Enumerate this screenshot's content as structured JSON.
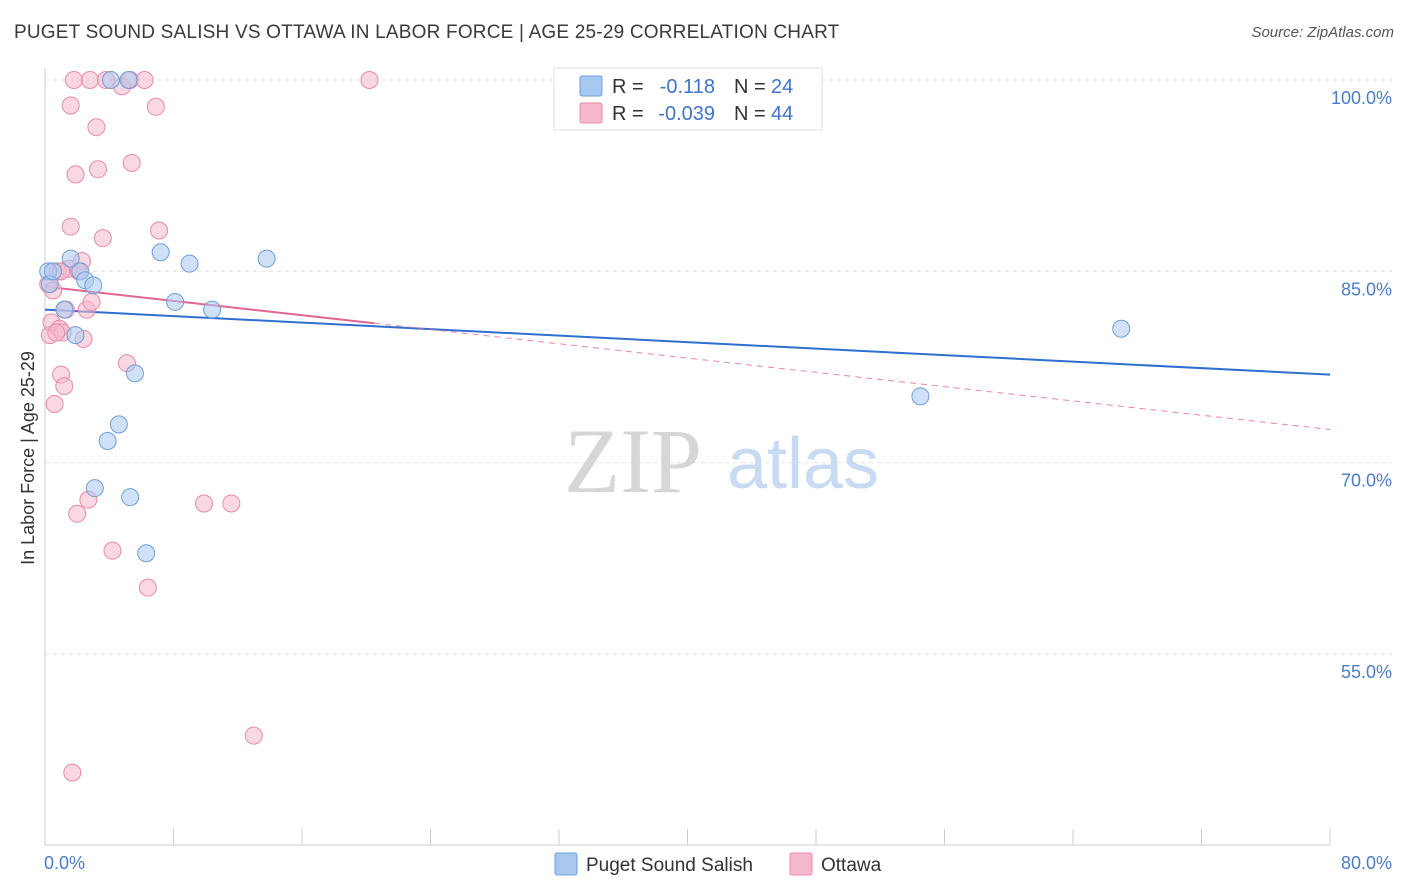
{
  "chart_data": {
    "type": "scatter",
    "title": "PUGET SOUND SALISH VS OTTAWA IN LABOR FORCE | AGE 25-29 CORRELATION CHART",
    "source": "Source: ZipAtlas.com",
    "xlabel": "",
    "ylabel": "In Labor Force | Age 25-29",
    "xlim": [
      0,
      80
    ],
    "ylim": [
      42,
      102
    ],
    "x_tick_labels": [
      "0.0%",
      "80.0%"
    ],
    "y_ticks": [
      55,
      70,
      85,
      100
    ],
    "y_tick_labels": [
      "55.0%",
      "70.0%",
      "85.0%",
      "100.0%"
    ],
    "watermark": {
      "zip": "ZIP",
      "atlas": "atlas"
    },
    "legend": {
      "r_label": "R =",
      "n_label": "N =",
      "entries": [
        {
          "name": "Puget Sound Salish",
          "r": "-0.118",
          "n": "24"
        },
        {
          "name": "Ottawa",
          "r": "-0.039",
          "n": "44"
        }
      ]
    },
    "colors": {
      "blue_fill": "#a9c8f0",
      "blue_stroke": "#6f9fd8",
      "blue_line": "#2f6fcf",
      "pink_fill": "#f6b8cb",
      "pink_stroke": "#e88aa8",
      "pink_line": "#e0668e",
      "grid": "#e2e2e2",
      "axis": "#cccccc"
    },
    "series": [
      {
        "name": "Puget Sound Salish",
        "points": [
          [
            0.2,
            85.0
          ],
          [
            0.3,
            84.0
          ],
          [
            0.5,
            85.0
          ],
          [
            1.2,
            82.0
          ],
          [
            1.6,
            86.0
          ],
          [
            1.9,
            80.0
          ],
          [
            2.2,
            85.0
          ],
          [
            2.5,
            84.3
          ],
          [
            3.0,
            83.9
          ],
          [
            3.1,
            68.0
          ],
          [
            3.9,
            71.7
          ],
          [
            4.1,
            100.0
          ],
          [
            4.6,
            73.0
          ],
          [
            5.2,
            100.0
          ],
          [
            5.3,
            67.3
          ],
          [
            5.6,
            77.0
          ],
          [
            6.3,
            62.9
          ],
          [
            7.2,
            86.5
          ],
          [
            8.1,
            82.6
          ],
          [
            9.0,
            85.6
          ],
          [
            10.4,
            82.0
          ],
          [
            13.8,
            86.0
          ],
          [
            54.5,
            75.2
          ],
          [
            67.0,
            80.5
          ]
        ],
        "trend": {
          "x": [
            0,
            80
          ],
          "y": [
            82.0,
            76.9
          ]
        }
      },
      {
        "name": "Ottawa",
        "points": [
          [
            0.2,
            84.0
          ],
          [
            0.3,
            80.0
          ],
          [
            0.4,
            81.0
          ],
          [
            0.6,
            74.6
          ],
          [
            0.8,
            85.0
          ],
          [
            0.9,
            80.5
          ],
          [
            1.0,
            76.9
          ],
          [
            1.1,
            80.2
          ],
          [
            1.2,
            76.0
          ],
          [
            1.3,
            82.0
          ],
          [
            1.5,
            85.2
          ],
          [
            1.6,
            88.5
          ],
          [
            1.6,
            98.0
          ],
          [
            1.7,
            45.7
          ],
          [
            1.8,
            100.0
          ],
          [
            1.9,
            92.6
          ],
          [
            2.0,
            66.0
          ],
          [
            2.3,
            85.8
          ],
          [
            2.4,
            79.7
          ],
          [
            2.6,
            82.0
          ],
          [
            2.7,
            67.1
          ],
          [
            2.8,
            100.0
          ],
          [
            2.9,
            82.6
          ],
          [
            3.2,
            96.3
          ],
          [
            3.3,
            93.0
          ],
          [
            3.6,
            87.6
          ],
          [
            3.8,
            100.0
          ],
          [
            4.2,
            63.1
          ],
          [
            4.8,
            99.5
          ],
          [
            5.1,
            77.8
          ],
          [
            5.3,
            100.0
          ],
          [
            5.4,
            93.5
          ],
          [
            6.2,
            100.0
          ],
          [
            6.4,
            60.2
          ],
          [
            6.9,
            97.9
          ],
          [
            7.1,
            88.2
          ],
          [
            9.9,
            66.8
          ],
          [
            11.6,
            66.8
          ],
          [
            13.0,
            48.6
          ],
          [
            20.2,
            100.0
          ],
          [
            0.5,
            83.5
          ],
          [
            1.0,
            85.0
          ],
          [
            2.1,
            85.0
          ],
          [
            0.7,
            80.2
          ]
        ],
        "trend": {
          "x": [
            0,
            80
          ],
          "y": [
            83.8,
            72.6
          ],
          "solid_until_x": 20.5
        }
      }
    ]
  }
}
